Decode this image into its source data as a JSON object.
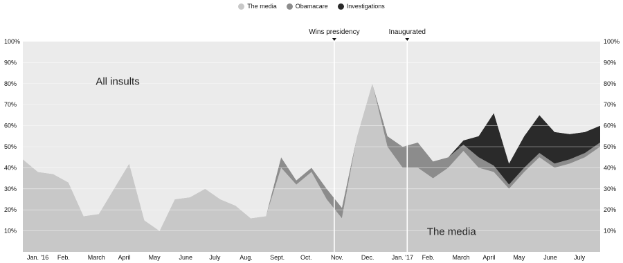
{
  "chart_data": {
    "type": "area",
    "stacked": true,
    "y_unit": "percent of insults",
    "ylim": [
      0,
      100
    ],
    "y_ticks": [
      "100%",
      "90%",
      "80%",
      "70%",
      "60%",
      "50%",
      "40%",
      "30%",
      "20%",
      "10%"
    ],
    "y_tick_values": [
      100,
      90,
      80,
      70,
      60,
      50,
      40,
      30,
      20,
      10
    ],
    "grid": true,
    "legend_position": "top-center",
    "x_tick_labels": [
      "Jan. '16",
      "Feb.",
      "March",
      "April",
      "May",
      "June",
      "July",
      "Aug.",
      "Sept.",
      "Oct.",
      "Nov.",
      "Dec.",
      "Jan. '17",
      "Feb.",
      "March",
      "April",
      "May",
      "June",
      "July"
    ],
    "x_tick_months": [
      0,
      1,
      2,
      3,
      4,
      5,
      6,
      7,
      8,
      9,
      10,
      11,
      12,
      13,
      14,
      15,
      16,
      17,
      18
    ],
    "xlim_months": [
      0,
      19
    ],
    "x": [
      0,
      0.5,
      1,
      1.5,
      2,
      2.5,
      3,
      3.5,
      4,
      4.5,
      5,
      5.5,
      6,
      6.5,
      7,
      7.5,
      8,
      8.5,
      9,
      9.5,
      10,
      10.5,
      11,
      11.5,
      12,
      12.5,
      13,
      13.5,
      14,
      14.5,
      15,
      15.5,
      16,
      16.5,
      17,
      17.5,
      18,
      18.5,
      19
    ],
    "series": [
      {
        "name": "The media",
        "color": "#c8c8c8",
        "values": [
          44,
          38,
          37,
          33,
          17,
          18,
          30,
          42,
          15,
          10,
          25,
          26,
          30,
          25,
          22,
          16,
          17,
          40,
          32,
          38,
          25,
          16,
          55,
          80,
          50,
          40,
          40,
          35,
          40,
          48,
          40,
          38,
          30,
          38,
          45,
          40,
          42,
          45,
          50
        ]
      },
      {
        "name": "Obamacare",
        "color": "#8c8c8c",
        "values": [
          0,
          0,
          0,
          0,
          0,
          0,
          0,
          0,
          0,
          0,
          0,
          0,
          0,
          0,
          0,
          0,
          0,
          5,
          2,
          2,
          5,
          5,
          0,
          0,
          5,
          10,
          12,
          8,
          5,
          3,
          5,
          3,
          2,
          2,
          2,
          2,
          2,
          2,
          2
        ]
      },
      {
        "name": "Investigations",
        "color": "#2a2a2a",
        "values": [
          0,
          0,
          0,
          0,
          0,
          0,
          0,
          0,
          0,
          0,
          0,
          0,
          0,
          0,
          0,
          0,
          0,
          0,
          0,
          0,
          0,
          0,
          0,
          0,
          0,
          0,
          0,
          0,
          0,
          2,
          10,
          25,
          10,
          15,
          18,
          15,
          12,
          10,
          8
        ]
      },
      {
        "name": "All insults",
        "color": "#ebebeb",
        "values": [
          56,
          62,
          63,
          67,
          83,
          82,
          70,
          58,
          85,
          90,
          75,
          74,
          70,
          75,
          78,
          84,
          83,
          55,
          66,
          60,
          70,
          79,
          45,
          20,
          45,
          50,
          48,
          57,
          55,
          47,
          45,
          34,
          58,
          45,
          35,
          43,
          44,
          43,
          40
        ]
      }
    ],
    "annotations": [
      {
        "text": "Wins presidency",
        "x": 10.25
      },
      {
        "text": "Inaugurated",
        "x": 12.65
      }
    ],
    "area_labels": [
      {
        "text": "All insults",
        "series": "All insults"
      },
      {
        "text": "The media",
        "series": "The media"
      }
    ]
  }
}
